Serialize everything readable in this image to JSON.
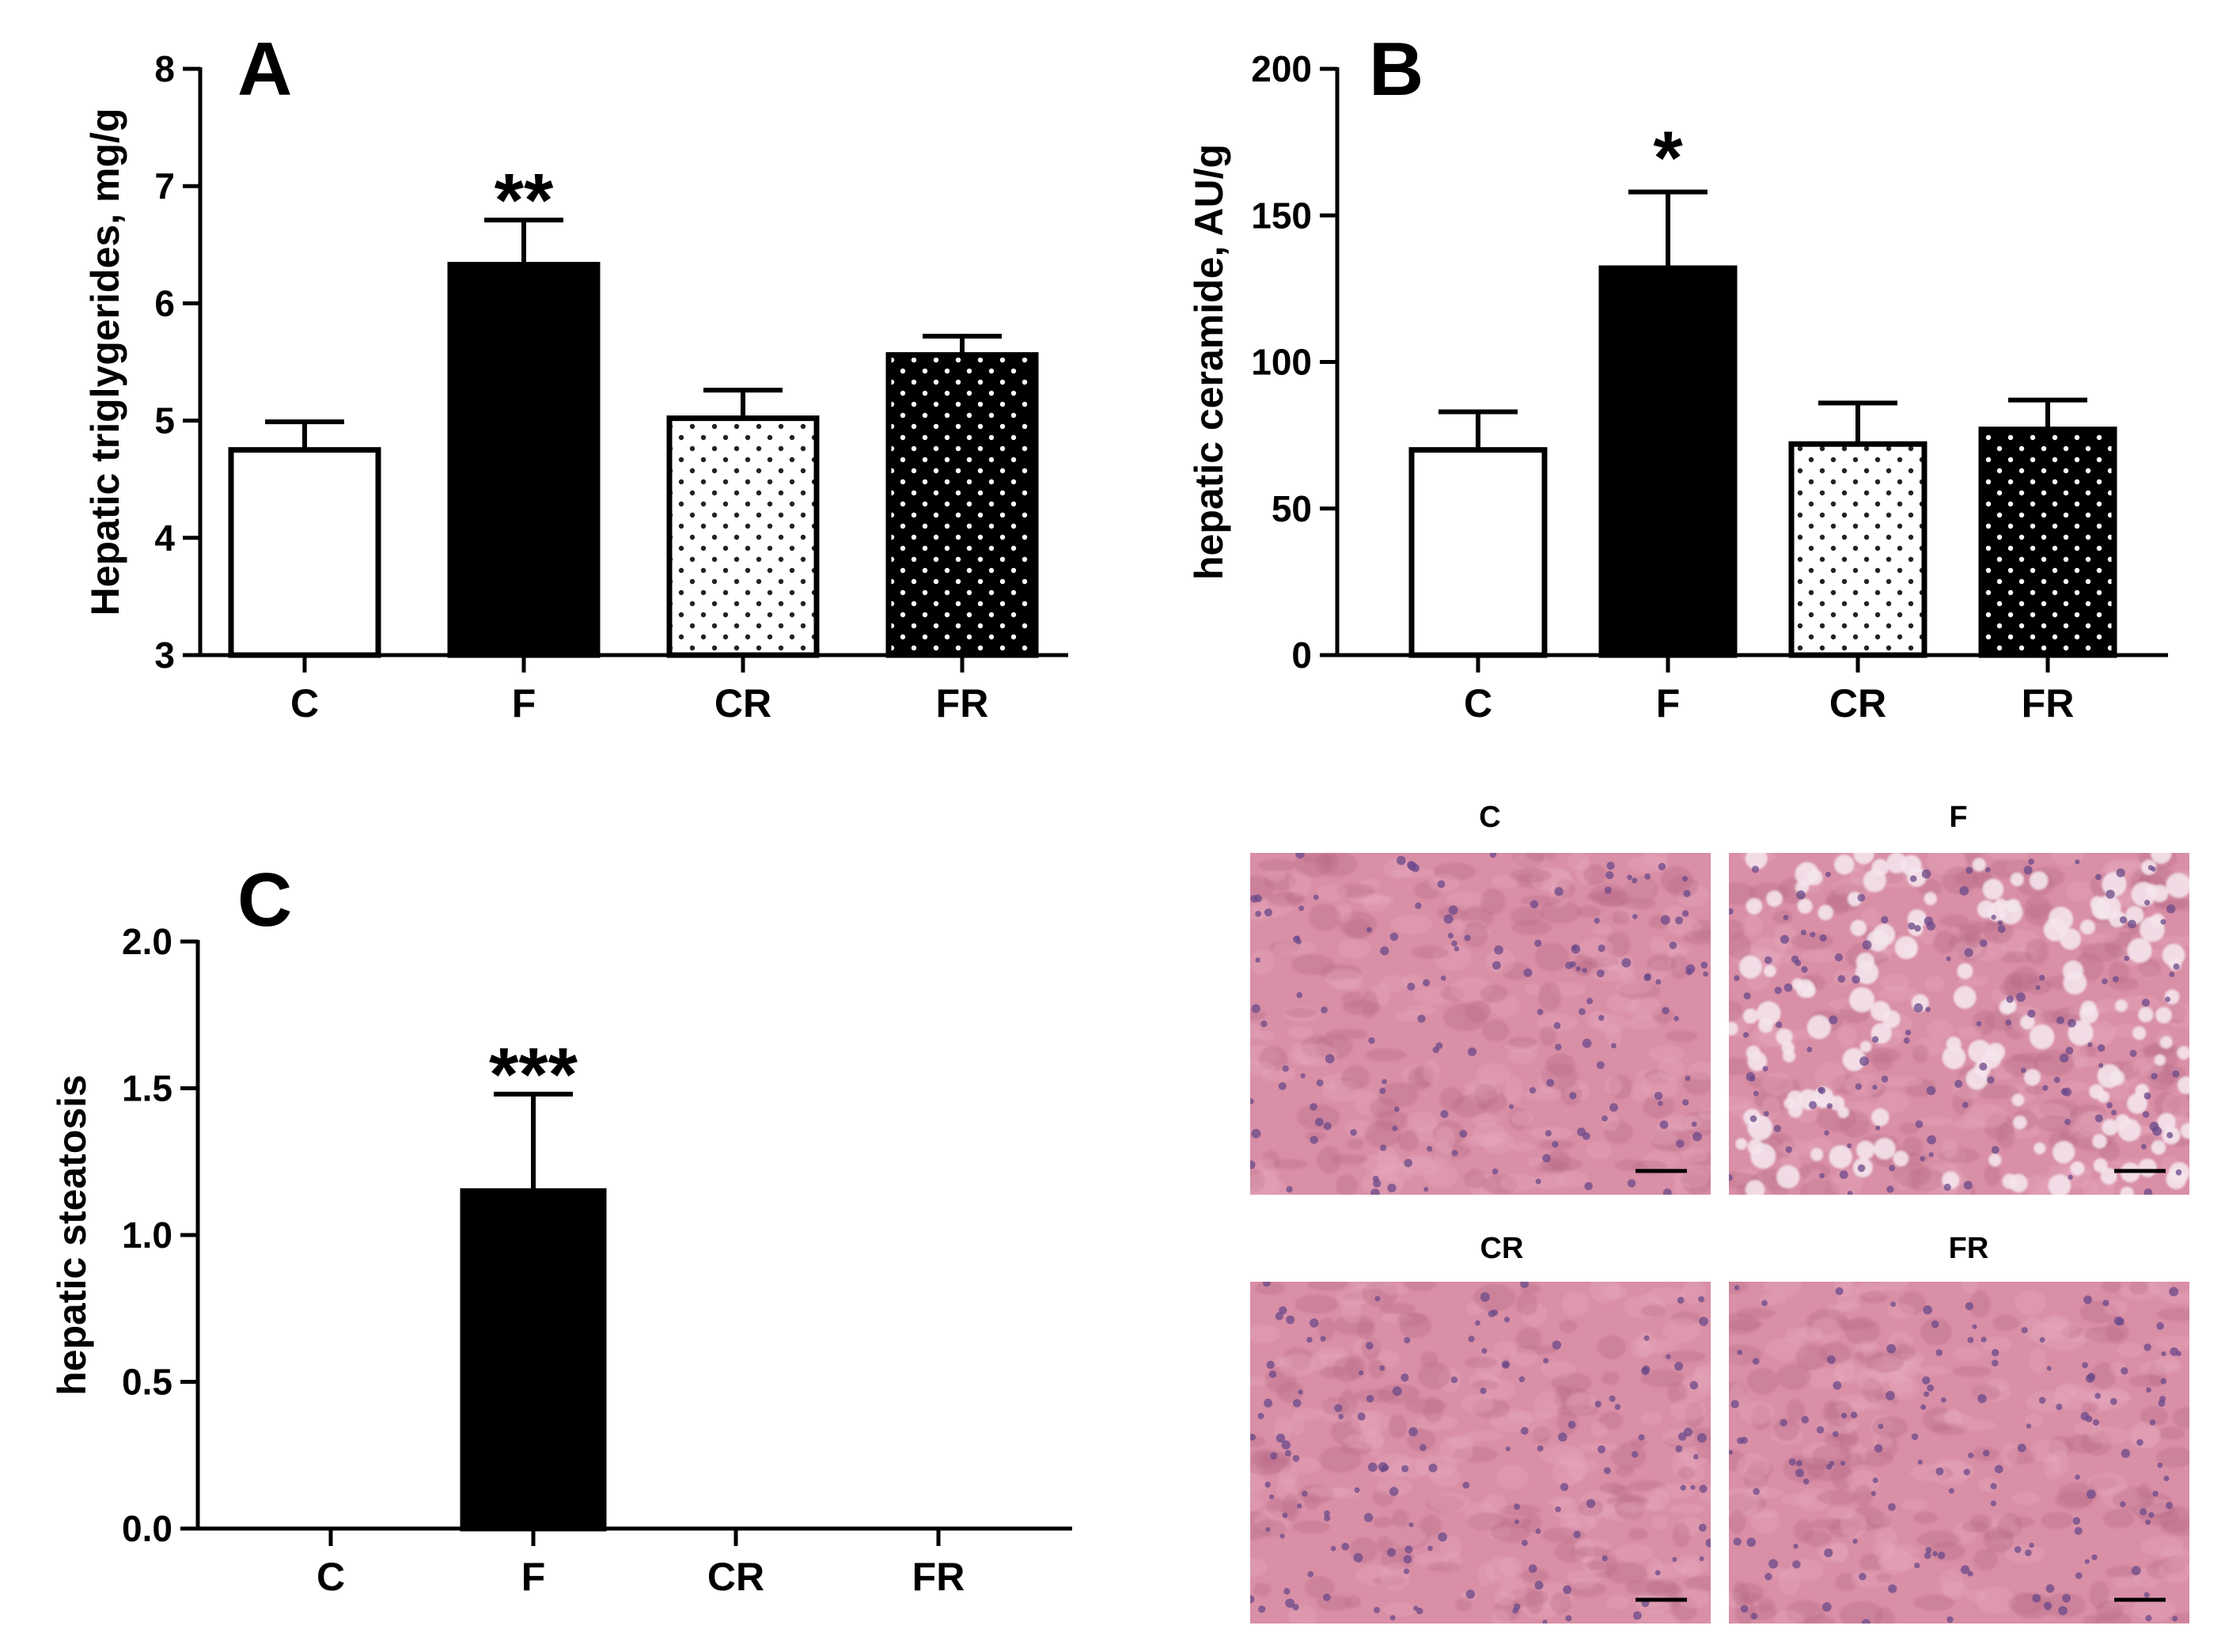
{
  "chart_data": [
    {
      "panel": "A",
      "type": "bar",
      "categories": [
        "C",
        "F",
        "CR",
        "FR"
      ],
      "values": [
        4.75,
        6.33,
        5.02,
        5.56
      ],
      "errors": [
        0.24,
        0.38,
        0.24,
        0.16
      ],
      "significance": [
        "",
        "**",
        "",
        ""
      ],
      "ylabel": "Hepatic triglygerides, mg/g",
      "ylim": [
        3,
        8
      ],
      "yticks": [
        3,
        4,
        5,
        6,
        7,
        8
      ],
      "bar_fills": [
        "white",
        "black",
        "white-dots",
        "black-dots"
      ]
    },
    {
      "panel": "B",
      "type": "bar",
      "categories": [
        "C",
        "F",
        "CR",
        "FR"
      ],
      "values": [
        70,
        132,
        72,
        77
      ],
      "errors": [
        13,
        26,
        14,
        10
      ],
      "significance": [
        "",
        "*",
        "",
        ""
      ],
      "ylabel": "hepatic ceramide, AU/g",
      "ylim": [
        0,
        200
      ],
      "yticks": [
        0,
        50,
        100,
        150,
        200
      ],
      "bar_fills": [
        "white",
        "black",
        "white-dots",
        "black-dots"
      ]
    },
    {
      "panel": "C",
      "type": "bar",
      "categories": [
        "C",
        "F",
        "CR",
        "FR"
      ],
      "values": [
        0,
        1.15,
        0,
        0
      ],
      "errors": [
        0,
        0.33,
        0,
        0
      ],
      "significance": [
        "",
        "***",
        "",
        ""
      ],
      "ylabel": "hepatic steatosis",
      "ylim": [
        0,
        2
      ],
      "yticks": [
        "0.0",
        "0.5",
        "1.0",
        "1.5",
        "2.0"
      ],
      "bar_fills": [
        "white",
        "black",
        "white-dots",
        "black-dots"
      ]
    }
  ],
  "micrographs": {
    "labels": [
      "C",
      "F",
      "CR",
      "FR"
    ],
    "colors": {
      "tissue_base": "#d98fa6",
      "tissue_dark": "#b86a88",
      "nucleus": "#6a4a8a",
      "vacuole": "#f4e4ec"
    }
  }
}
